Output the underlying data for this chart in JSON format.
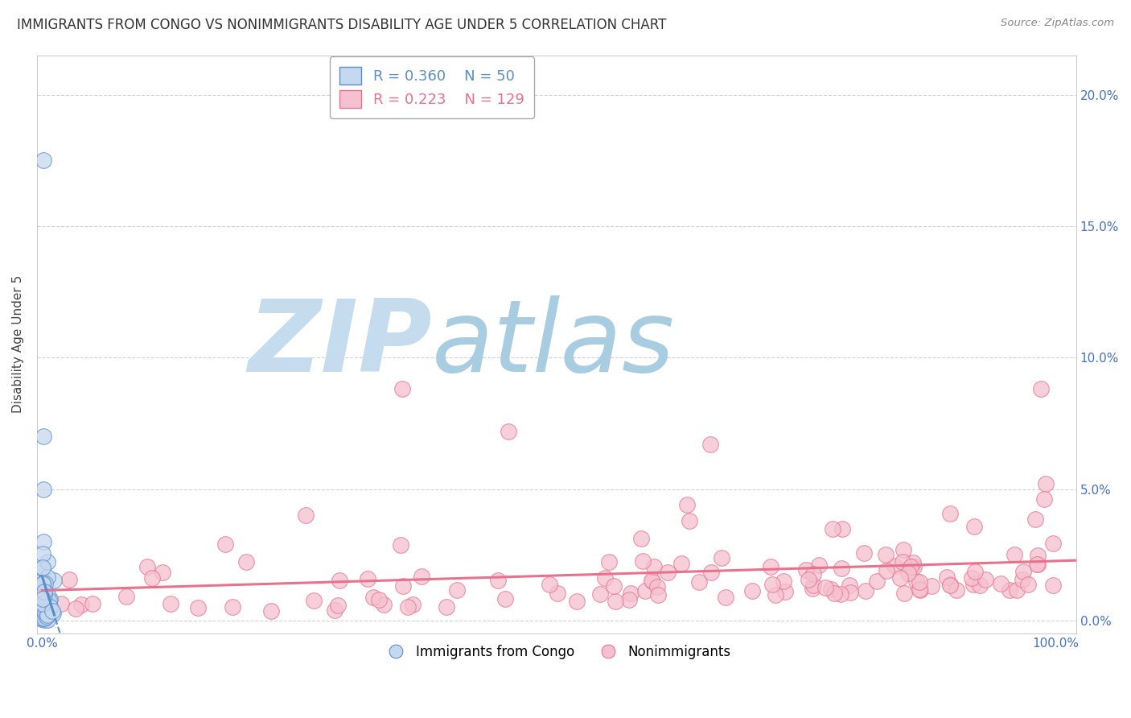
{
  "title": "IMMIGRANTS FROM CONGO VS NONIMMIGRANTS DISABILITY AGE UNDER 5 CORRELATION CHART",
  "source": "Source: ZipAtlas.com",
  "ylabel": "Disability Age Under 5",
  "xlim": [
    -0.005,
    1.02
  ],
  "ylim": [
    -0.005,
    0.215
  ],
  "xtick_vals": [
    0.0,
    1.0
  ],
  "xticklabels": [
    "0.0%",
    "100.0%"
  ],
  "ytick_vals": [
    0.0,
    0.05,
    0.1,
    0.15,
    0.2
  ],
  "yticklabels": [
    "0.0%",
    "5.0%",
    "10.0%",
    "15.0%",
    "20.0%"
  ],
  "legend_r1": "R = 0.360",
  "legend_n1": "N = 50",
  "legend_r2": "R = 0.223",
  "legend_n2": "N = 129",
  "blue_face": "#c5d8ef",
  "blue_edge": "#5b8dc8",
  "pink_face": "#f5c0cf",
  "pink_edge": "#e8728e",
  "blue_line": "#5b8dc8",
  "pink_line": "#e8728e",
  "watermark_zip": "ZIP",
  "watermark_atlas": "atlas",
  "watermark_color_zip": "#c8dff0",
  "watermark_color_atlas": "#b0cce0",
  "bg_color": "#ffffff",
  "grid_color": "#cccccc",
  "title_fontsize": 12,
  "tick_color": "#4472c4",
  "tick_fontsize": 11,
  "legend_fontsize": 13,
  "blue_n": 50,
  "pink_n": 129
}
